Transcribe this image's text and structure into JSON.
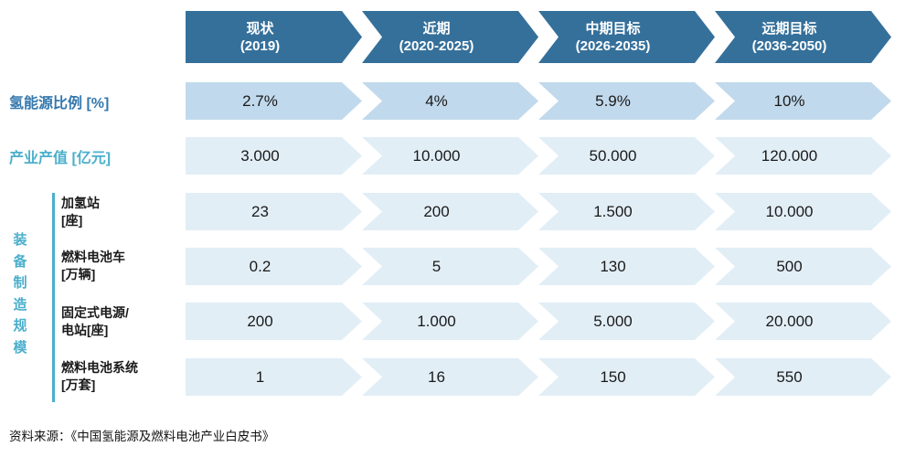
{
  "colors": {
    "header_bg": "#35709B",
    "header_text": "#FFFFFF",
    "row_highlight_bg": "#C1D9EC",
    "row_bg": "#E2EEF6",
    "label_blue": "#3478AD",
    "label_teal": "#4BAFCC",
    "value_text": "#1A1A1A"
  },
  "header": {
    "cells": [
      {
        "line1": "现状",
        "line2": "(2019)"
      },
      {
        "line1": "近期",
        "line2": "(2020-2025)"
      },
      {
        "line1": "中期目标",
        "line2": "(2026-2035)"
      },
      {
        "line1": "远期目标",
        "line2": "(2036-2050)"
      }
    ]
  },
  "left_labels": {
    "hydrogen_share": "氢能源比例 [%]",
    "industry_value": "产业产值 [亿元]",
    "group": {
      "label": "装备制造规模",
      "chars": [
        "装",
        "备",
        "制",
        "造",
        "规",
        "模"
      ]
    },
    "sublabels": [
      {
        "line1": "加氢站",
        "line2": "[座]"
      },
      {
        "line1": "燃料电池车",
        "line2": "[万辆]"
      },
      {
        "line1": "固定式电源/",
        "line2": "电站[座]"
      },
      {
        "line1": "燃料电池系统",
        "line2": "[万套]"
      }
    ]
  },
  "rows": [
    {
      "id": "hydrogen-share",
      "values": [
        "2.7%",
        "4%",
        "5.9%",
        "10%"
      ]
    },
    {
      "id": "industry-value",
      "values": [
        "3.000",
        "10.000",
        "50.000",
        "120.000"
      ]
    },
    {
      "id": "refueling-stations",
      "values": [
        "23",
        "200",
        "1.500",
        "10.000"
      ]
    },
    {
      "id": "fuel-cell-vehicles",
      "values": [
        "0.2",
        "5",
        "130",
        "500"
      ]
    },
    {
      "id": "stationary-power",
      "values": [
        "200",
        "1.000",
        "5.000",
        "20.000"
      ]
    },
    {
      "id": "fuel-cell-systems",
      "values": [
        "1",
        "16",
        "150",
        "550"
      ]
    }
  ],
  "footer": {
    "source": "资料来源：《中国氢能源及燃料电池产业白皮书》"
  },
  "chart_data": {
    "type": "table",
    "columns": [
      "现状 (2019)",
      "近期 (2020-2025)",
      "中期目标 (2026-2035)",
      "远期目标 (2036-2050)"
    ],
    "rows": [
      {
        "label": "氢能源比例 [%]",
        "group": null,
        "values": [
          "2.7%",
          "4%",
          "5.9%",
          "10%"
        ]
      },
      {
        "label": "产业产值 [亿元]",
        "group": null,
        "values": [
          "3.000",
          "10.000",
          "50.000",
          "120.000"
        ]
      },
      {
        "label": "加氢站 [座]",
        "group": "装备制造规模",
        "values": [
          "23",
          "200",
          "1.500",
          "10.000"
        ]
      },
      {
        "label": "燃料电池车 [万辆]",
        "group": "装备制造规模",
        "values": [
          "0.2",
          "5",
          "130",
          "500"
        ]
      },
      {
        "label": "固定式电源/电站 [座]",
        "group": "装备制造规模",
        "values": [
          "200",
          "1.000",
          "5.000",
          "20.000"
        ]
      },
      {
        "label": "燃料电池系统 [万套]",
        "group": "装备制造规模",
        "values": [
          "1",
          "16",
          "150",
          "550"
        ]
      }
    ],
    "source": "资料来源：《中国氢能源及燃料电池产业白皮书》",
    "layout": {
      "shape": "chevron-process-arrows",
      "highlighted_row": "氢能源比例 [%]"
    }
  }
}
